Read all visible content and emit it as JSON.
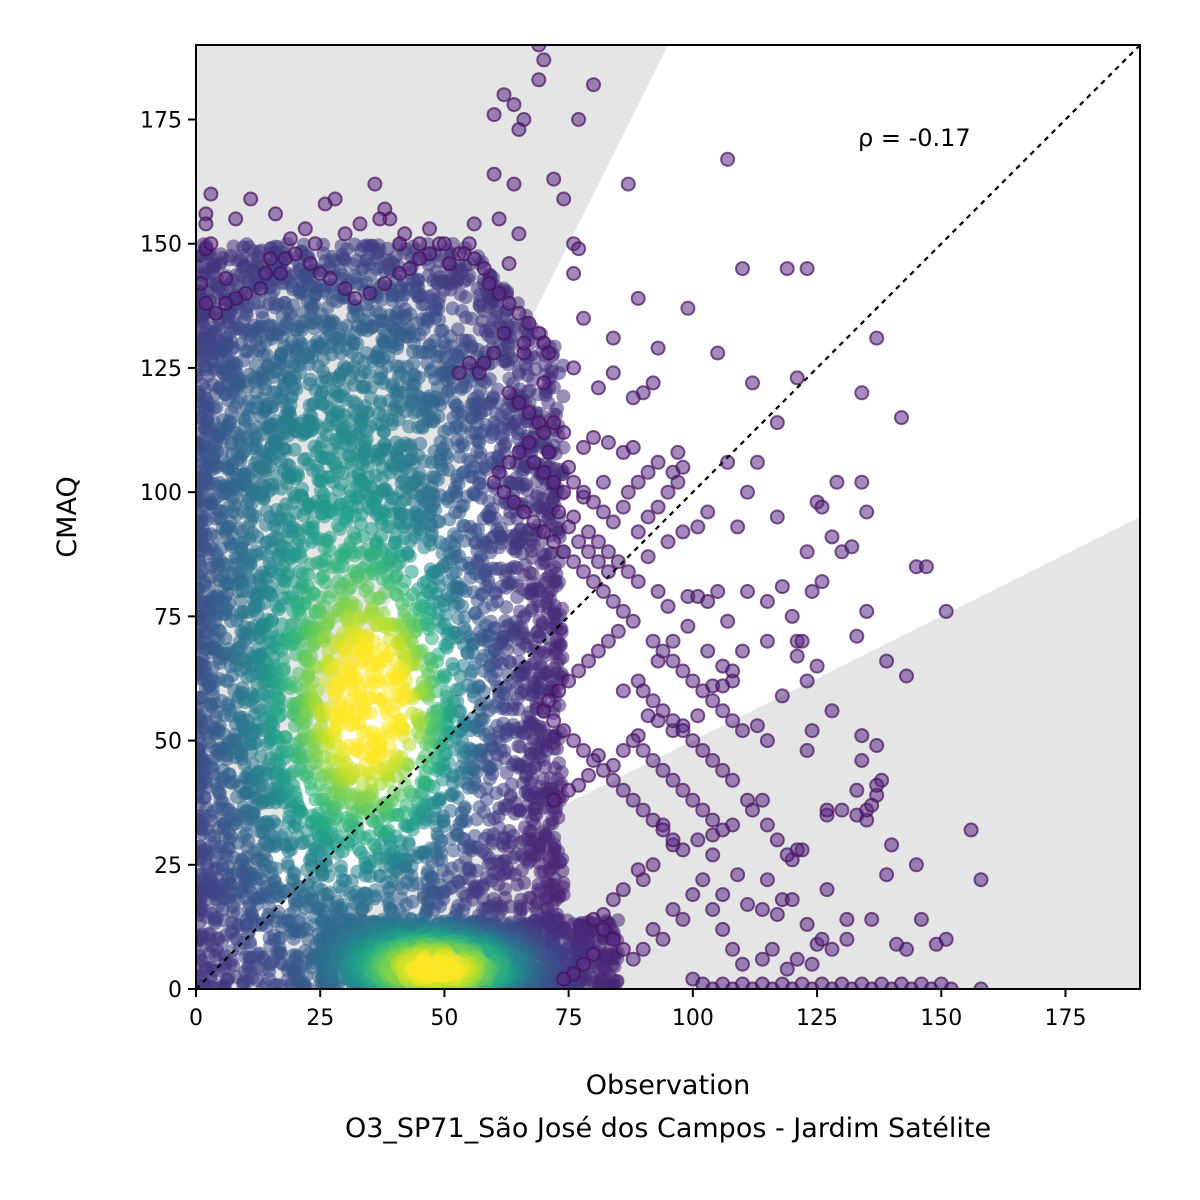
{
  "chart_data": {
    "type": "scatter",
    "title": "",
    "xlabel": "Observation",
    "ylabel": "CMAQ",
    "subtitle": "O3_SP71_São José dos Campos - Jardim Satélite",
    "xlim": [
      0,
      190
    ],
    "ylim": [
      0,
      190
    ],
    "xticks": [
      0,
      25,
      50,
      75,
      100,
      125,
      150,
      175
    ],
    "yticks": [
      0,
      25,
      50,
      75,
      100,
      125,
      150,
      175
    ],
    "annotation": "ρ = -0.17",
    "reference_line": {
      "type": "1:1",
      "style": "dotted",
      "color": "#000000"
    },
    "shaded_regions": [
      {
        "name": "upper factor-2 region",
        "boundary": "y > 2x",
        "color": "#e5e5e5"
      },
      {
        "name": "lower factor-2 region",
        "boundary": "y < 0.5x",
        "color": "#e5e5e5"
      }
    ],
    "colormap": "viridis (point density)",
    "density_peaks": [
      {
        "x": 49,
        "y": 4,
        "level": 1.0
      },
      {
        "x": 37,
        "y": 57,
        "level": 0.78
      }
    ],
    "points": [
      [
        69,
        190
      ],
      [
        70,
        187
      ],
      [
        80,
        182
      ],
      [
        69,
        183
      ],
      [
        62,
        180
      ],
      [
        64,
        178
      ],
      [
        66,
        175
      ],
      [
        65,
        173
      ],
      [
        60,
        176
      ],
      [
        77,
        175
      ],
      [
        64,
        162
      ],
      [
        60,
        164
      ],
      [
        72,
        163
      ],
      [
        87,
        162
      ],
      [
        107,
        167
      ],
      [
        36,
        162
      ],
      [
        74,
        159
      ],
      [
        76,
        150
      ],
      [
        77,
        149
      ],
      [
        61,
        155
      ],
      [
        65,
        152
      ],
      [
        76,
        144
      ],
      [
        63,
        146
      ],
      [
        49,
        150
      ],
      [
        3,
        160
      ],
      [
        11,
        159
      ],
      [
        2,
        156
      ],
      [
        2,
        154
      ],
      [
        8,
        155
      ],
      [
        16,
        156
      ],
      [
        26,
        158
      ],
      [
        28,
        159
      ],
      [
        39,
        155
      ],
      [
        42,
        152
      ],
      [
        56,
        154
      ],
      [
        66,
        128
      ],
      [
        78,
        135
      ],
      [
        84,
        131
      ],
      [
        89,
        139
      ],
      [
        99,
        137
      ],
      [
        110,
        145
      ],
      [
        119,
        145
      ],
      [
        123,
        145
      ],
      [
        137,
        131
      ],
      [
        112,
        122
      ],
      [
        105,
        128
      ],
      [
        93,
        129
      ],
      [
        84,
        124
      ],
      [
        92,
        122
      ],
      [
        90,
        120
      ],
      [
        88,
        119
      ],
      [
        81,
        121
      ],
      [
        76,
        125
      ],
      [
        70,
        122
      ],
      [
        72,
        114
      ],
      [
        74,
        112
      ],
      [
        78,
        109
      ],
      [
        71,
        108
      ],
      [
        80,
        111
      ],
      [
        83,
        110
      ],
      [
        86,
        108
      ],
      [
        88,
        109
      ],
      [
        82,
        102
      ],
      [
        78,
        99
      ],
      [
        75,
        105
      ],
      [
        97,
        108
      ],
      [
        96,
        104
      ],
      [
        98,
        105
      ],
      [
        107,
        106
      ],
      [
        113,
        106
      ],
      [
        117,
        114
      ],
      [
        121,
        123
      ],
      [
        125,
        98
      ],
      [
        126,
        97
      ],
      [
        129,
        102
      ],
      [
        134,
        102
      ],
      [
        142,
        115
      ],
      [
        134,
        120
      ],
      [
        130,
        88
      ],
      [
        135,
        96
      ],
      [
        128,
        91
      ],
      [
        123,
        88
      ],
      [
        117,
        95
      ],
      [
        111,
        100
      ],
      [
        109,
        93
      ],
      [
        103,
        96
      ],
      [
        101,
        93
      ],
      [
        98,
        92
      ],
      [
        95,
        90
      ],
      [
        91,
        87
      ],
      [
        89,
        82
      ],
      [
        93,
        80
      ],
      [
        95,
        77
      ],
      [
        99,
        79
      ],
      [
        101,
        79
      ],
      [
        103,
        78
      ],
      [
        107,
        74
      ],
      [
        105,
        80
      ],
      [
        111,
        80
      ],
      [
        115,
        78
      ],
      [
        118,
        81
      ],
      [
        120,
        75
      ],
      [
        124,
        80
      ],
      [
        126,
        82
      ],
      [
        132,
        89
      ],
      [
        135,
        76
      ],
      [
        133,
        71
      ],
      [
        139,
        66
      ],
      [
        143,
        63
      ],
      [
        145,
        85
      ],
      [
        147,
        85
      ],
      [
        151,
        76
      ],
      [
        115,
        70
      ],
      [
        121,
        70
      ],
      [
        121,
        67
      ],
      [
        122,
        70
      ],
      [
        123,
        62
      ],
      [
        125,
        65
      ],
      [
        118,
        59
      ],
      [
        110,
        68
      ],
      [
        108,
        62
      ],
      [
        104,
        61
      ],
      [
        101,
        55
      ],
      [
        98,
        53
      ],
      [
        96,
        52
      ],
      [
        93,
        54
      ],
      [
        91,
        55
      ],
      [
        89,
        51
      ],
      [
        86,
        48
      ],
      [
        84,
        45
      ],
      [
        81,
        47
      ],
      [
        79,
        43
      ],
      [
        77,
        41
      ],
      [
        75,
        40
      ],
      [
        72,
        38
      ],
      [
        86,
        60
      ],
      [
        89,
        62
      ],
      [
        93,
        66
      ],
      [
        96,
        70
      ],
      [
        99,
        73
      ],
      [
        103,
        68
      ],
      [
        106,
        61
      ],
      [
        106,
        65
      ],
      [
        108,
        64
      ],
      [
        113,
        53
      ],
      [
        115,
        50
      ],
      [
        123,
        48
      ],
      [
        124,
        52
      ],
      [
        128,
        56
      ],
      [
        134,
        51
      ],
      [
        137,
        49
      ],
      [
        134,
        46
      ],
      [
        138,
        42
      ],
      [
        137,
        39
      ],
      [
        133,
        40
      ],
      [
        130,
        36
      ],
      [
        127,
        35
      ],
      [
        127,
        36
      ],
      [
        122,
        28
      ],
      [
        121,
        28
      ],
      [
        120,
        26
      ],
      [
        119,
        27
      ],
      [
        117,
        30
      ],
      [
        115,
        33
      ],
      [
        114,
        38
      ],
      [
        111,
        38
      ],
      [
        112,
        36
      ],
      [
        108,
        33
      ],
      [
        104,
        31
      ],
      [
        101,
        30
      ],
      [
        98,
        28
      ],
      [
        96,
        29
      ],
      [
        94,
        33
      ],
      [
        92,
        25
      ],
      [
        90,
        22
      ],
      [
        89,
        24
      ],
      [
        86,
        20
      ],
      [
        84,
        18
      ],
      [
        82,
        15
      ],
      [
        80,
        14
      ],
      [
        104,
        27
      ],
      [
        106,
        19
      ],
      [
        109,
        23
      ],
      [
        111,
        17
      ],
      [
        114,
        16
      ],
      [
        115,
        22
      ],
      [
        117,
        15
      ],
      [
        118,
        18
      ],
      [
        120,
        18
      ],
      [
        123,
        13
      ],
      [
        125,
        9
      ],
      [
        126,
        10
      ],
      [
        127,
        20
      ],
      [
        131,
        14
      ],
      [
        133,
        35
      ],
      [
        135,
        34
      ],
      [
        135,
        36
      ],
      [
        136,
        37
      ],
      [
        137,
        41
      ],
      [
        139,
        23
      ],
      [
        140,
        29
      ],
      [
        145,
        25
      ],
      [
        146,
        14
      ],
      [
        149,
        9
      ],
      [
        151,
        10
      ],
      [
        156,
        32
      ],
      [
        158,
        22
      ],
      [
        143,
        8
      ],
      [
        141,
        9
      ],
      [
        136,
        14
      ],
      [
        131,
        10
      ],
      [
        128,
        8
      ],
      [
        124,
        5
      ],
      [
        121,
        6
      ],
      [
        119,
        4
      ],
      [
        116,
        8
      ],
      [
        114,
        6
      ],
      [
        110,
        5
      ],
      [
        108,
        8
      ],
      [
        106,
        12
      ],
      [
        104,
        16
      ],
      [
        102,
        22
      ],
      [
        100,
        19
      ],
      [
        98,
        14
      ],
      [
        96,
        16
      ],
      [
        94,
        10
      ],
      [
        92,
        12
      ],
      [
        90,
        8
      ],
      [
        88,
        6
      ],
      [
        86,
        8
      ],
      [
        84,
        10
      ],
      [
        82,
        12
      ],
      [
        80,
        7
      ],
      [
        78,
        5
      ],
      [
        76,
        3
      ],
      [
        74,
        2
      ],
      [
        100,
        2
      ],
      [
        102,
        1
      ],
      [
        104,
        0
      ],
      [
        106,
        1
      ],
      [
        108,
        0
      ],
      [
        110,
        1
      ],
      [
        112,
        0
      ],
      [
        114,
        1
      ],
      [
        116,
        0
      ],
      [
        118,
        1
      ],
      [
        120,
        0
      ],
      [
        122,
        1
      ],
      [
        124,
        0
      ],
      [
        126,
        1
      ],
      [
        128,
        0
      ],
      [
        130,
        1
      ],
      [
        132,
        0
      ],
      [
        134,
        1
      ],
      [
        136,
        0
      ],
      [
        138,
        1
      ],
      [
        140,
        0
      ],
      [
        142,
        1
      ],
      [
        144,
        0
      ],
      [
        146,
        1
      ],
      [
        148,
        0
      ],
      [
        150,
        1
      ],
      [
        152,
        0
      ],
      [
        158,
        0
      ],
      [
        55,
        150
      ],
      [
        53,
        148
      ],
      [
        51,
        146
      ],
      [
        47,
        148
      ],
      [
        45,
        147
      ],
      [
        43,
        145
      ],
      [
        41,
        144
      ],
      [
        38,
        142
      ],
      [
        35,
        140
      ],
      [
        32,
        139
      ],
      [
        30,
        141
      ],
      [
        27,
        143
      ],
      [
        25,
        144
      ],
      [
        23,
        146
      ],
      [
        20,
        148
      ],
      [
        18,
        147
      ],
      [
        15,
        147
      ],
      [
        13,
        141
      ],
      [
        10,
        140
      ],
      [
        8,
        139
      ],
      [
        6,
        138
      ],
      [
        4,
        136
      ],
      [
        2,
        138
      ],
      [
        1,
        142
      ],
      [
        2,
        149
      ],
      [
        3,
        150
      ],
      [
        6,
        143
      ],
      [
        14,
        144
      ],
      [
        17,
        144
      ],
      [
        19,
        151
      ],
      [
        22,
        153
      ],
      [
        24,
        150
      ],
      [
        30,
        152
      ],
      [
        33,
        154
      ],
      [
        38,
        157
      ],
      [
        37,
        155
      ],
      [
        41,
        150
      ],
      [
        45,
        150
      ],
      [
        47,
        153
      ],
      [
        50,
        150
      ],
      [
        54,
        148
      ],
      [
        56,
        147
      ],
      [
        58,
        145
      ],
      [
        59,
        142
      ],
      [
        61,
        140
      ],
      [
        63,
        138
      ],
      [
        65,
        136
      ],
      [
        67,
        134
      ],
      [
        69,
        132
      ],
      [
        70,
        130
      ],
      [
        71,
        128
      ],
      [
        66,
        130
      ],
      [
        62,
        132
      ],
      [
        60,
        128
      ],
      [
        58,
        126
      ],
      [
        57,
        124
      ],
      [
        55,
        126
      ],
      [
        53,
        124
      ],
      [
        63,
        120
      ],
      [
        65,
        118
      ],
      [
        67,
        116
      ],
      [
        69,
        114
      ],
      [
        70,
        112
      ],
      [
        67,
        110
      ],
      [
        65,
        108
      ],
      [
        63,
        106
      ],
      [
        61,
        104
      ],
      [
        60,
        102
      ],
      [
        62,
        100
      ],
      [
        64,
        98
      ],
      [
        66,
        96
      ],
      [
        68,
        94
      ],
      [
        70,
        92
      ],
      [
        72,
        90
      ],
      [
        74,
        88
      ],
      [
        76,
        86
      ],
      [
        78,
        84
      ],
      [
        80,
        82
      ],
      [
        82,
        80
      ],
      [
        84,
        78
      ],
      [
        86,
        76
      ],
      [
        88,
        74
      ],
      [
        85,
        72
      ],
      [
        83,
        70
      ],
      [
        81,
        68
      ],
      [
        79,
        66
      ],
      [
        77,
        64
      ],
      [
        75,
        62
      ],
      [
        73,
        60
      ],
      [
        71,
        58
      ],
      [
        70,
        56
      ],
      [
        72,
        54
      ],
      [
        74,
        52
      ],
      [
        76,
        50
      ],
      [
        78,
        48
      ],
      [
        80,
        46
      ],
      [
        82,
        44
      ],
      [
        84,
        42
      ],
      [
        86,
        40
      ],
      [
        88,
        38
      ],
      [
        90,
        36
      ],
      [
        92,
        34
      ],
      [
        94,
        32
      ],
      [
        96,
        30
      ],
      [
        76,
        95
      ],
      [
        79,
        92
      ],
      [
        81,
        90
      ],
      [
        83,
        88
      ],
      [
        85,
        86
      ],
      [
        87,
        84
      ],
      [
        89,
        92
      ],
      [
        91,
        95
      ],
      [
        93,
        97
      ],
      [
        95,
        100
      ],
      [
        97,
        102
      ],
      [
        74,
        100
      ],
      [
        72,
        102
      ],
      [
        70,
        104
      ],
      [
        68,
        106
      ],
      [
        73,
        96
      ],
      [
        75,
        93
      ],
      [
        77,
        90
      ],
      [
        79,
        88
      ],
      [
        81,
        86
      ],
      [
        83,
        84
      ],
      [
        87,
        100
      ],
      [
        89,
        102
      ],
      [
        91,
        104
      ],
      [
        93,
        106
      ],
      [
        86,
        97
      ],
      [
        84,
        94
      ],
      [
        82,
        96
      ],
      [
        80,
        98
      ],
      [
        78,
        100
      ],
      [
        76,
        102
      ],
      [
        92,
        70
      ],
      [
        94,
        68
      ],
      [
        96,
        66
      ],
      [
        98,
        64
      ],
      [
        100,
        62
      ],
      [
        102,
        60
      ],
      [
        104,
        58
      ],
      [
        106,
        56
      ],
      [
        108,
        54
      ],
      [
        110,
        52
      ],
      [
        90,
        60
      ],
      [
        92,
        58
      ],
      [
        94,
        56
      ],
      [
        96,
        54
      ],
      [
        98,
        52
      ],
      [
        100,
        50
      ],
      [
        102,
        48
      ],
      [
        104,
        46
      ],
      [
        106,
        44
      ],
      [
        108,
        42
      ],
      [
        88,
        50
      ],
      [
        90,
        48
      ],
      [
        92,
        46
      ],
      [
        94,
        44
      ],
      [
        96,
        42
      ],
      [
        98,
        40
      ],
      [
        100,
        38
      ],
      [
        102,
        36
      ],
      [
        104,
        34
      ],
      [
        106,
        32
      ]
    ]
  }
}
